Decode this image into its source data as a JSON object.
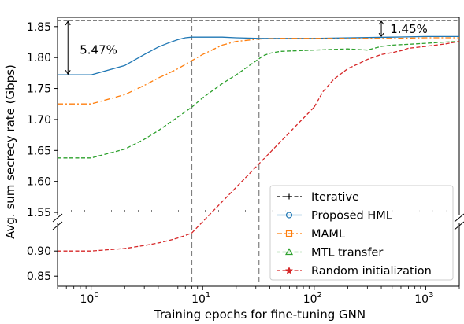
{
  "chart_data": {
    "type": "line",
    "xlabel": "Training epochs for fine-tuning GNN",
    "ylabel": "Avg. sum secrecy rate (Gbps)",
    "xscale": "log",
    "xlim": [
      0.5,
      2000
    ],
    "x_ticks": [
      {
        "value": 1,
        "base": "10",
        "exp": "0"
      },
      {
        "value": 10,
        "base": "10",
        "exp": "1"
      },
      {
        "value": 100,
        "base": "10",
        "exp": "2"
      },
      {
        "value": 1000,
        "base": "10",
        "exp": "3"
      }
    ],
    "y_axis_broken": true,
    "ylim_upper": [
      1.545,
      1.865
    ],
    "ylim_lower": [
      0.83,
      0.955
    ],
    "y_ticks_upper": [
      "1.55",
      "1.60",
      "1.65",
      "1.70",
      "1.75",
      "1.80",
      "1.85"
    ],
    "y_ticks_lower": [
      "0.85",
      "0.90"
    ],
    "grid": false,
    "legend_position": "lower-right",
    "vlines": [
      8,
      32
    ],
    "series": [
      {
        "name": "Iterative",
        "color": "#000000",
        "linestyle": "dashed",
        "marker": "plus",
        "x": [
          0.5,
          2000
        ],
        "y": [
          1.86,
          1.86
        ]
      },
      {
        "name": "Proposed HML",
        "color": "#1f77b4",
        "linestyle": "solid",
        "marker": "circle",
        "x": [
          0.5,
          1,
          2,
          3,
          4,
          5,
          6,
          7,
          8,
          10,
          15,
          20,
          32,
          100,
          500,
          1000,
          2000
        ],
        "y": [
          1.772,
          1.772,
          1.787,
          1.805,
          1.817,
          1.824,
          1.829,
          1.832,
          1.833,
          1.833,
          1.833,
          1.832,
          1.831,
          1.831,
          1.833,
          1.834,
          1.834
        ]
      },
      {
        "name": "MAML",
        "color": "#ff7f0e",
        "linestyle": "dashdot",
        "marker": "square",
        "x": [
          0.5,
          1,
          2,
          3,
          4,
          5,
          6,
          8,
          10,
          15,
          20,
          32,
          50,
          100,
          500,
          1000,
          2000
        ],
        "y": [
          1.725,
          1.725,
          1.74,
          1.755,
          1.767,
          1.775,
          1.782,
          1.795,
          1.805,
          1.82,
          1.826,
          1.83,
          1.831,
          1.831,
          1.831,
          1.832,
          1.832
        ]
      },
      {
        "name": "MTL transfer",
        "color": "#2ca02c",
        "linestyle": "dashed",
        "marker": "triangle",
        "x": [
          0.5,
          1,
          2,
          3,
          4,
          5,
          6,
          8,
          10,
          15,
          20,
          32,
          35,
          40,
          50,
          100,
          200,
          300,
          400,
          500,
          800,
          1000,
          1500,
          2000
        ],
        "y": [
          1.638,
          1.638,
          1.652,
          1.668,
          1.682,
          1.694,
          1.704,
          1.72,
          1.735,
          1.758,
          1.772,
          1.798,
          1.803,
          1.807,
          1.81,
          1.812,
          1.814,
          1.812,
          1.818,
          1.82,
          1.822,
          1.823,
          1.825,
          1.826
        ]
      },
      {
        "name": "Random initialization",
        "color": "#d62728",
        "linestyle": "dashed",
        "marker": "star",
        "x": [
          0.5,
          1,
          2,
          3,
          4,
          5,
          6,
          7,
          8,
          100,
          120,
          150,
          200,
          250,
          300,
          400,
          500,
          600,
          700,
          1000,
          1500,
          2000
        ],
        "y": [
          0.9,
          0.9,
          0.905,
          0.911,
          0.916,
          0.921,
          0.926,
          0.931,
          0.936,
          1.72,
          1.745,
          1.765,
          1.782,
          1.79,
          1.797,
          1.805,
          1.808,
          1.811,
          1.815,
          1.818,
          1.822,
          1.826
        ]
      }
    ],
    "annotations": [
      {
        "text": "5.47%",
        "x": 0.62,
        "y": 1.812
      },
      {
        "text": "1.45%",
        "x": 480,
        "y": 1.846
      }
    ]
  }
}
